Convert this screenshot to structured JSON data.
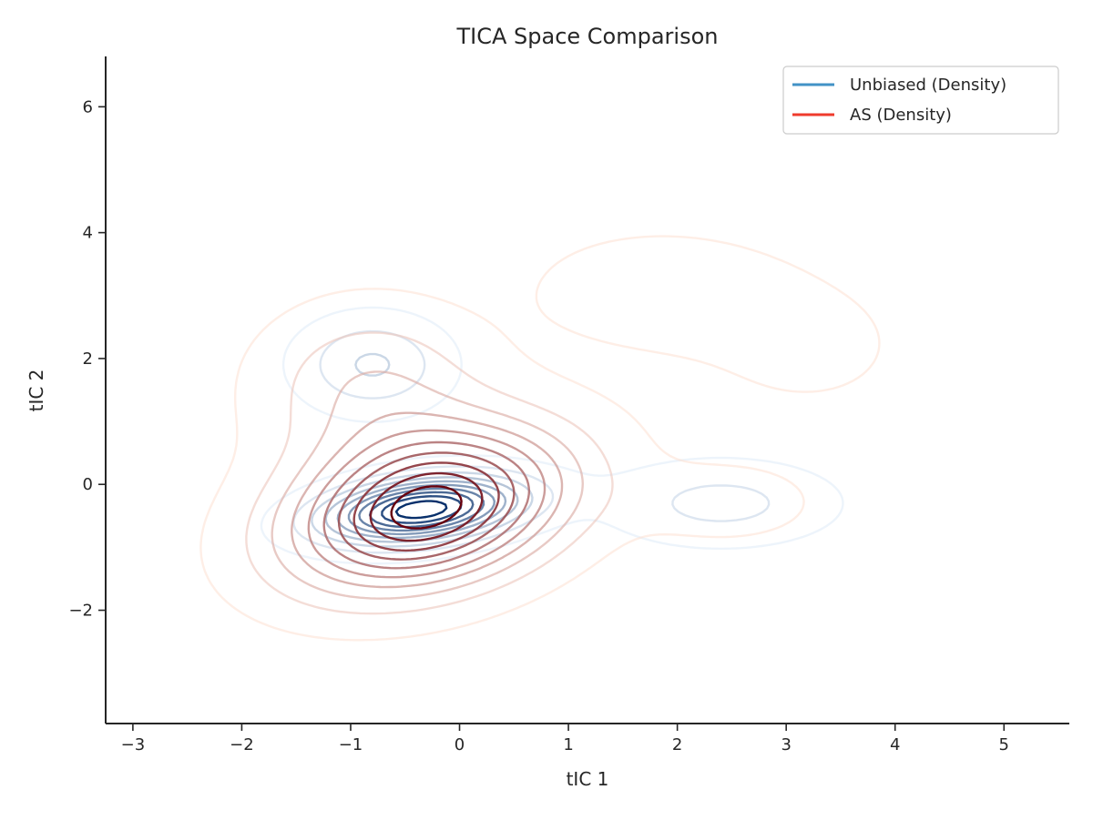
{
  "chart_data": {
    "type": "contour",
    "title": "TICA Space Comparison",
    "xlabel": "tIC 1",
    "ylabel": "tIC 2",
    "xlim": [
      -3.25,
      5.6
    ],
    "ylim": [
      -3.8,
      6.8
    ],
    "xticks": [
      -3,
      -2,
      -1,
      0,
      1,
      2,
      3,
      4,
      5
    ],
    "xtick_labels": [
      "−3",
      "−2",
      "−1",
      "0",
      "1",
      "2",
      "3",
      "4",
      "5"
    ],
    "yticks": [
      -2,
      0,
      2,
      4,
      6
    ],
    "ytick_labels": [
      "−2",
      "0",
      "2",
      "4",
      "6"
    ],
    "grid": false,
    "legend_position": "top-right",
    "series": [
      {
        "name": "Unbiased (Density)",
        "color": "#4292c6",
        "colormap": "Blues",
        "levels": 10,
        "components": [
          {
            "weight": 1.0,
            "mean": [
              -0.35,
              -0.4
            ],
            "sd": [
              0.6,
              0.35
            ],
            "rho": 0.3
          },
          {
            "weight": 0.26,
            "mean": [
              -0.8,
              1.9
            ],
            "sd": [
              0.45,
              0.5
            ],
            "rho": 0.0
          },
          {
            "weight": 0.18,
            "mean": [
              2.4,
              -0.3
            ],
            "sd": [
              0.7,
              0.45
            ],
            "rho": 0.0
          },
          {
            "weight": 0.05,
            "mean": [
              1.85,
              3.0
            ],
            "sd": [
              0.2,
              0.15
            ],
            "rho": 0.0
          }
        ]
      },
      {
        "name": "AS (Density)",
        "color": "#ef3b2c",
        "colormap": "Reds",
        "levels": 10,
        "components": [
          {
            "weight": 1.0,
            "mean": [
              -0.3,
              -0.4
            ],
            "sd": [
              0.85,
              0.85
            ],
            "rho": 0.3
          },
          {
            "weight": 0.25,
            "mean": [
              -0.8,
              1.5
            ],
            "sd": [
              0.7,
              0.9
            ],
            "rho": 0.0
          },
          {
            "weight": 0.13,
            "mean": [
              1.8,
              3.1
            ],
            "sd": [
              0.75,
              0.6
            ],
            "rho": 0.0
          },
          {
            "weight": 0.1,
            "mean": [
              2.45,
              -0.3
            ],
            "sd": [
              0.6,
              0.45
            ],
            "rho": 0.0
          },
          {
            "weight": 0.07,
            "mean": [
              3.2,
              2.2
            ],
            "sd": [
              0.8,
              0.9
            ],
            "rho": 0.0
          }
        ]
      }
    ]
  }
}
